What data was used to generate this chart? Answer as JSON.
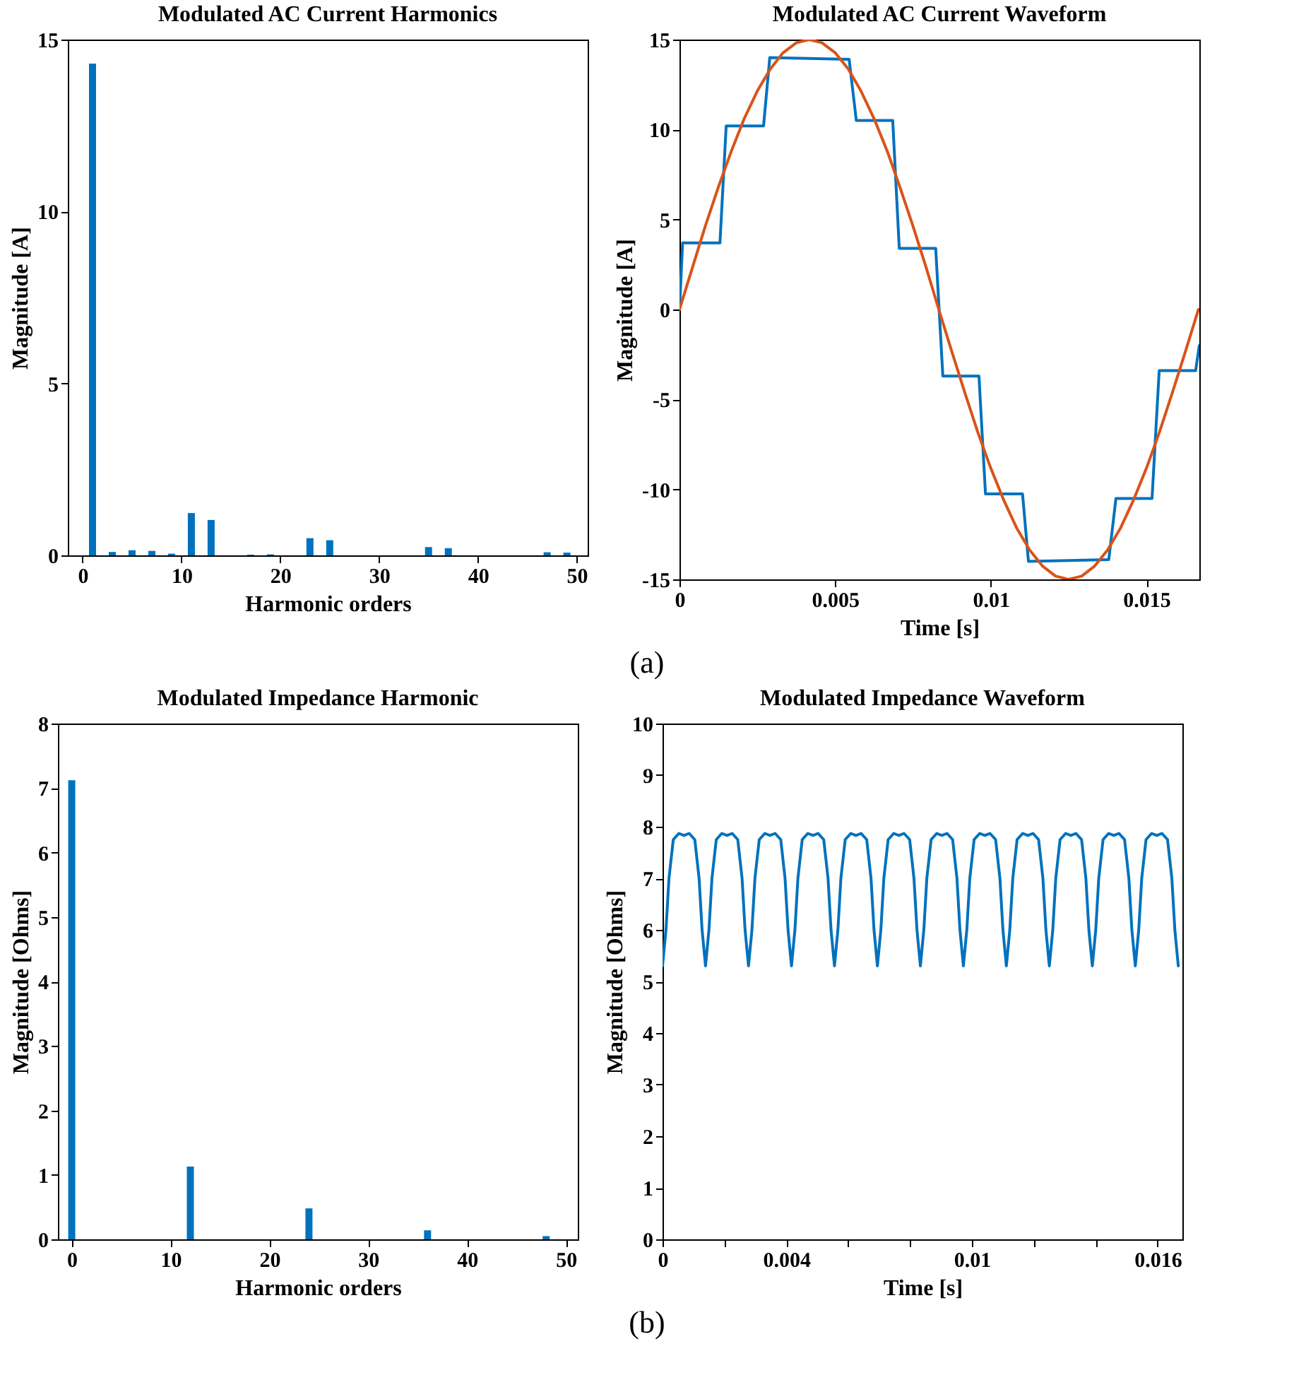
{
  "chart_data": [
    {
      "type": "bar",
      "title": "Modulated AC Current Harmonics",
      "xlabel": "Harmonic orders",
      "ylabel": "Magnitude [A]",
      "x": [
        1,
        3,
        5,
        7,
        9,
        11,
        13,
        15,
        17,
        19,
        21,
        23,
        25,
        27,
        29,
        31,
        33,
        35,
        37,
        39,
        41,
        43,
        45,
        47,
        49
      ],
      "series": [
        {
          "color": "#0072bd",
          "values": [
            14.3,
            0.1,
            0.15,
            0.13,
            0.05,
            1.23,
            1.03,
            0,
            0.02,
            0.03,
            0,
            0.5,
            0.44,
            0,
            0,
            0,
            0,
            0.24,
            0.21,
            0,
            0,
            0,
            0,
            0.09,
            0.08
          ]
        }
      ],
      "xlim": [
        -1.5,
        51.1
      ],
      "xticks": [
        0,
        10,
        20,
        30,
        40,
        50
      ],
      "ylim": [
        0,
        15
      ],
      "yticks": [
        0,
        5,
        10,
        15
      ],
      "grid": false
    },
    {
      "type": "line",
      "title": "Modulated AC Current Waveform",
      "xlabel": "Time [s]",
      "ylabel": "Magnitude [A]",
      "annotations": [
        "(a)"
      ],
      "series": [
        {
          "color": "#0072bd",
          "x": [
            0,
            0.0001,
            0.0013,
            0.0015,
            0.0027,
            0.0029,
            0.00545,
            0.00568,
            0.00685,
            0.00706,
            0.00823,
            0.00846,
            0.00962,
            0.00983,
            0.01102,
            0.01121,
            0.01379,
            0.01402,
            0.01518,
            0.01541,
            0.01658,
            0.0167
          ],
          "values": [
            0,
            3.7,
            3.7,
            10.2,
            10.2,
            14.0,
            13.9,
            10.5,
            10.5,
            3.4,
            3.4,
            -3.7,
            -3.7,
            -10.25,
            -10.25,
            -14.0,
            -13.9,
            -10.5,
            -10.5,
            -3.4,
            -3.4,
            -2.0
          ]
        },
        {
          "color": "#d95319",
          "x": [
            0,
            0.00042,
            0.00083,
            0.00125,
            0.00167,
            0.00208,
            0.0025,
            0.00292,
            0.00333,
            0.00375,
            0.00417,
            0.00458,
            0.005,
            0.00542,
            0.00583,
            0.00625,
            0.00667,
            0.00708,
            0.0075,
            0.00792,
            0.00833,
            0.00875,
            0.00917,
            0.00958,
            0.01,
            0.01042,
            0.01083,
            0.01125,
            0.01167,
            0.01208,
            0.0125,
            0.01292,
            0.01333,
            0.01375,
            0.01417,
            0.01458,
            0.015,
            0.01542,
            0.01583,
            0.01625,
            0.01667
          ],
          "values": [
            0,
            2.35,
            4.64,
            6.81,
            8.82,
            10.61,
            12.14,
            13.37,
            14.27,
            14.82,
            15,
            14.82,
            14.27,
            13.37,
            12.14,
            10.61,
            8.82,
            6.81,
            4.64,
            2.35,
            0,
            -2.35,
            -4.64,
            -6.81,
            -8.82,
            -10.61,
            -12.14,
            -13.37,
            -14.27,
            -14.82,
            -15,
            -14.82,
            -14.27,
            -13.37,
            -12.14,
            -10.61,
            -8.82,
            -6.81,
            -4.64,
            -2.35,
            0
          ]
        }
      ],
      "xlim": [
        0,
        0.0167
      ],
      "xticks": [
        0,
        0.005,
        0.01,
        0.015
      ],
      "ylim": [
        -15,
        15
      ],
      "yticks": [
        -15,
        -10,
        -5,
        0,
        5,
        10,
        15
      ],
      "grid": false,
      "line_style": "solid"
    },
    {
      "type": "bar",
      "title": "Modulated Impedance Harmonic",
      "xlabel": "Harmonic orders",
      "ylabel": "Magnitude [Ohms]",
      "x": [
        0,
        12,
        24,
        36,
        48
      ],
      "series": [
        {
          "color": "#0072bd",
          "values": [
            7.12,
            1.13,
            0.48,
            0.14,
            0.05
          ]
        }
      ],
      "xlim": [
        -1.4,
        51.2
      ],
      "xticks": [
        0,
        10,
        20,
        30,
        40,
        50
      ],
      "ylim": [
        0,
        8
      ],
      "yticks": [
        0,
        1,
        2,
        3,
        4,
        5,
        6,
        7,
        8
      ],
      "grid": false
    },
    {
      "type": "line",
      "title": "Modulated Impedance Waveform",
      "xlabel": "Time [s]",
      "ylabel": "Magnitude [Ohms]",
      "annotations": [
        "(b)"
      ],
      "series": [
        {
          "color": "#0072bd",
          "x": [
            0,
            0.000111,
            0.000208,
            0.000347,
            0.000528,
            0.000694,
            0.000861,
            0.001042,
            0.001181,
            0.001278,
            0.001389,
            0.0015,
            0.001597,
            0.001736,
            0.001917,
            0.002083,
            0.00225,
            0.002431,
            0.00257,
            0.002667,
            0.002778,
            0.002889,
            0.002986,
            0.003125,
            0.003306,
            0.003472,
            0.003639,
            0.00382,
            0.003959,
            0.004056,
            0.004167,
            0.004278,
            0.004375,
            0.004514,
            0.004695,
            0.004861,
            0.005028,
            0.005209,
            0.005348,
            0.005445,
            0.005556,
            0.005667,
            0.005764,
            0.005903,
            0.006084,
            0.00625,
            0.006417,
            0.006598,
            0.006737,
            0.006834,
            0.006944,
            0.007055,
            0.007152,
            0.007291,
            0.007472,
            0.007638,
            0.007805,
            0.007986,
            0.008125,
            0.008222,
            0.008333,
            0.008444,
            0.008541,
            0.00868,
            0.008861,
            0.009027,
            0.009194,
            0.009375,
            0.009514,
            0.009611,
            0.009722,
            0.009833,
            0.00993,
            0.010069,
            0.01025,
            0.010416,
            0.010583,
            0.010764,
            0.010903,
            0.011,
            0.011111,
            0.011222,
            0.011319,
            0.011458,
            0.011639,
            0.011805,
            0.011972,
            0.012153,
            0.012292,
            0.012389,
            0.0125,
            0.012611,
            0.012708,
            0.012847,
            0.013028,
            0.013194,
            0.013361,
            0.013542,
            0.013681,
            0.013778,
            0.013889,
            0.014,
            0.014097,
            0.014236,
            0.014417,
            0.014583,
            0.01475,
            0.014931,
            0.01507,
            0.015167,
            0.015278,
            0.015389,
            0.015486,
            0.015625,
            0.015806,
            0.015972,
            0.016139,
            0.01632,
            0.016459,
            0.016556,
            0.016667
          ],
          "values": [
            5.3,
            6.0,
            7.0,
            7.75,
            7.87,
            7.83,
            7.87,
            7.75,
            7.0,
            6.0,
            5.3,
            6.0,
            7.0,
            7.75,
            7.87,
            7.83,
            7.87,
            7.75,
            7.0,
            6.0,
            5.3,
            6.0,
            7.0,
            7.75,
            7.87,
            7.83,
            7.87,
            7.75,
            7.0,
            6.0,
            5.3,
            6.0,
            7.0,
            7.75,
            7.87,
            7.83,
            7.87,
            7.75,
            7.0,
            6.0,
            5.3,
            6.0,
            7.0,
            7.75,
            7.87,
            7.83,
            7.87,
            7.75,
            7.0,
            6.0,
            5.3,
            6.0,
            7.0,
            7.75,
            7.87,
            7.83,
            7.87,
            7.75,
            7.0,
            6.0,
            5.3,
            6.0,
            7.0,
            7.75,
            7.87,
            7.83,
            7.87,
            7.75,
            7.0,
            6.0,
            5.3,
            6.0,
            7.0,
            7.75,
            7.87,
            7.83,
            7.87,
            7.75,
            7.0,
            6.0,
            5.3,
            6.0,
            7.0,
            7.75,
            7.87,
            7.83,
            7.87,
            7.75,
            7.0,
            6.0,
            5.3,
            6.0,
            7.0,
            7.75,
            7.87,
            7.83,
            7.87,
            7.75,
            7.0,
            6.0,
            5.3,
            6.0,
            7.0,
            7.75,
            7.87,
            7.83,
            7.87,
            7.75,
            7.0,
            6.0,
            5.3,
            6.0,
            7.0,
            7.75,
            7.87,
            7.83,
            7.87,
            7.75,
            7.0,
            6.0,
            5.3
          ]
        }
      ],
      "xlim": [
        0,
        0.0168
      ],
      "xticks": [
        0,
        {
          "value": 0.002,
          "label": null
        },
        {
          "value": 0.004,
          "label": "0.004"
        },
        {
          "value": 0.006,
          "label": null
        },
        {
          "value": 0.008,
          "label": null
        },
        {
          "value": 0.01,
          "label": "0.01"
        },
        {
          "value": 0.012,
          "label": null
        },
        {
          "value": 0.014,
          "label": null
        },
        {
          "value": 0.016,
          "label": "0.016"
        }
      ],
      "ylim": [
        0,
        10
      ],
      "yticks": [
        0,
        1,
        2,
        3,
        4,
        5,
        6,
        7,
        8,
        9,
        10
      ],
      "grid": false,
      "line_style": "solid"
    }
  ]
}
